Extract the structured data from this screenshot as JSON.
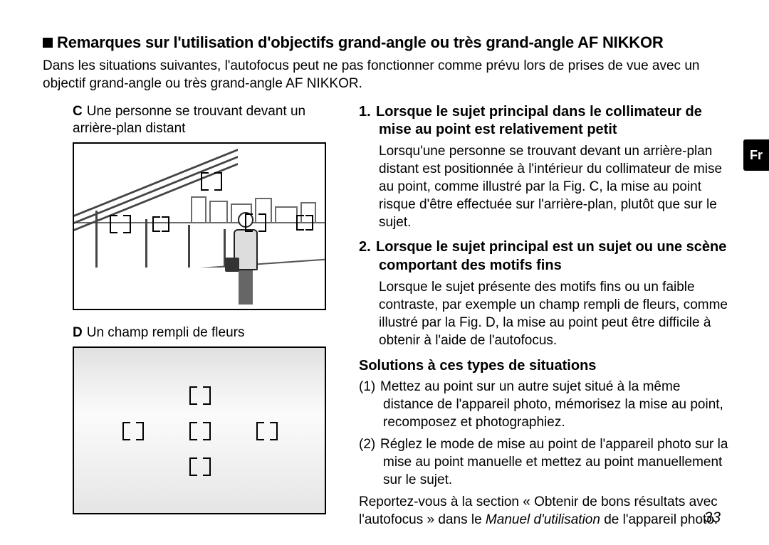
{
  "lang_tab": "Fr",
  "heading": "Remarques sur l'utilisation d'objectifs grand-angle ou très grand-angle AF NIKKOR",
  "intro": "Dans les situations suivantes, l'autofocus peut ne pas fonctionner comme prévu lors de prises de vue avec un objectif grand-angle ou très grand-angle AF NIKKOR.",
  "figC": {
    "label": "C",
    "caption": "Une personne se trouvant devant un arrière-plan distant"
  },
  "figD": {
    "label": "D",
    "caption": "Un champ rempli de fleurs"
  },
  "item1": {
    "num": "1.",
    "head": "Lorsque le sujet principal dans le collimateur de mise au point est relativement petit",
    "body": "Lorsqu'une personne se trouvant devant un arrière-plan distant est positionnée à l'intérieur du collimateur de mise au point, comme illustré par la Fig. C, la mise au point risque d'être effectuée sur l'arrière-plan, plutôt que sur le sujet."
  },
  "item2": {
    "num": "2.",
    "head": "Lorsque le sujet principal est un sujet ou une scène comportant des motifs fins",
    "body": "Lorsque le sujet présente des motifs fins ou un faible contraste, par exemple un champ rempli de fleurs, comme illustré par la Fig. D, la mise au point peut être difficile à obtenir à l'aide de l'autofocus."
  },
  "solutions_head": "Solutions à ces types de situations",
  "sol1": {
    "p": "(1)",
    "text": "Mettez au point sur un autre sujet situé à la même distance de l'appareil photo, mémorisez la mise au point, recomposez et photographiez."
  },
  "sol2": {
    "p": "(2)",
    "text": "Réglez le mode de mise au point de l'appareil photo sur la mise au point manuelle et mettez au point manuellement sur le sujet."
  },
  "note_a": "Reportez-vous à la section « Obtenir de bons résultats avec l'autofocus » dans le ",
  "note_ital": "Manuel d'utilisation",
  "note_b": " de l'appareil photo.",
  "page_number": "33"
}
